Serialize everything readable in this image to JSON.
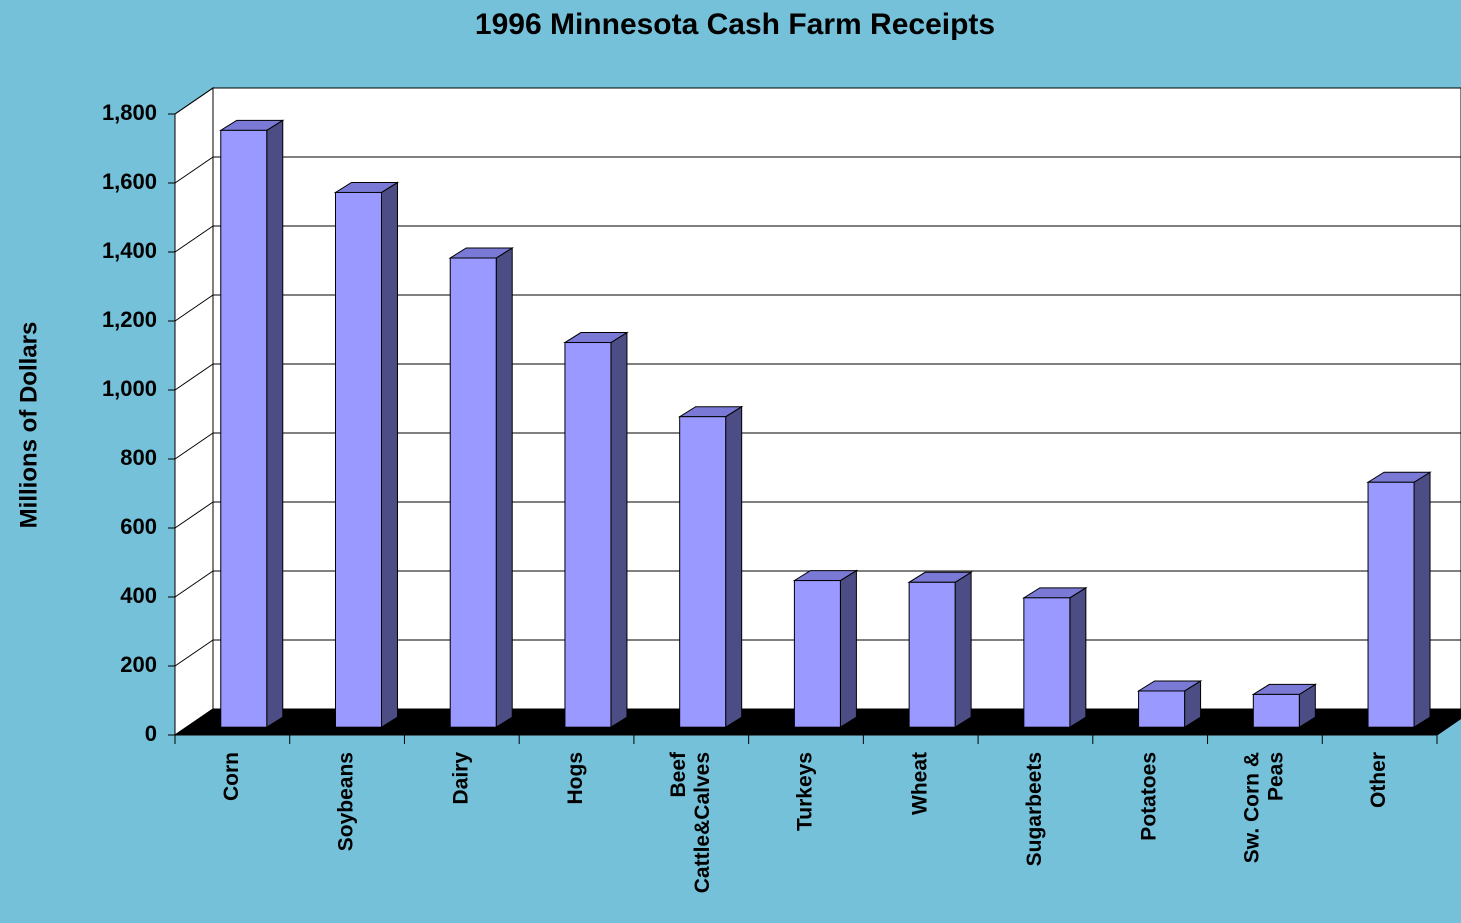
{
  "chart_data": {
    "type": "bar3d",
    "title": "1996 Minnesota Cash Farm Receipts",
    "y_label": "Millions of Dollars",
    "categories": [
      [
        "Corn"
      ],
      [
        "Soybeans"
      ],
      [
        "Dairy"
      ],
      [
        "Hogs"
      ],
      [
        "Beef",
        "Cattle&Calves"
      ],
      [
        "Turkeys"
      ],
      [
        "Wheat"
      ],
      [
        "Sugarbeets"
      ],
      [
        "Potatoes"
      ],
      [
        "Sw. Corn &",
        "Peas"
      ],
      [
        "Other"
      ]
    ],
    "values": [
      1730,
      1550,
      1360,
      1115,
      900,
      425,
      420,
      375,
      105,
      95,
      710
    ],
    "color": "#9999ff",
    "ylim": [
      0,
      1800
    ],
    "yticks": [
      0,
      200,
      400,
      600,
      800,
      {
        "value": 1000,
        "label": "1,000"
      },
      {
        "value": 1200,
        "label": "1,200"
      },
      {
        "value": 1400,
        "label": "1,400"
      },
      {
        "value": 1600,
        "label": "1,600"
      },
      {
        "value": 1800,
        "label": "1,800"
      }
    ],
    "grid": true
  }
}
